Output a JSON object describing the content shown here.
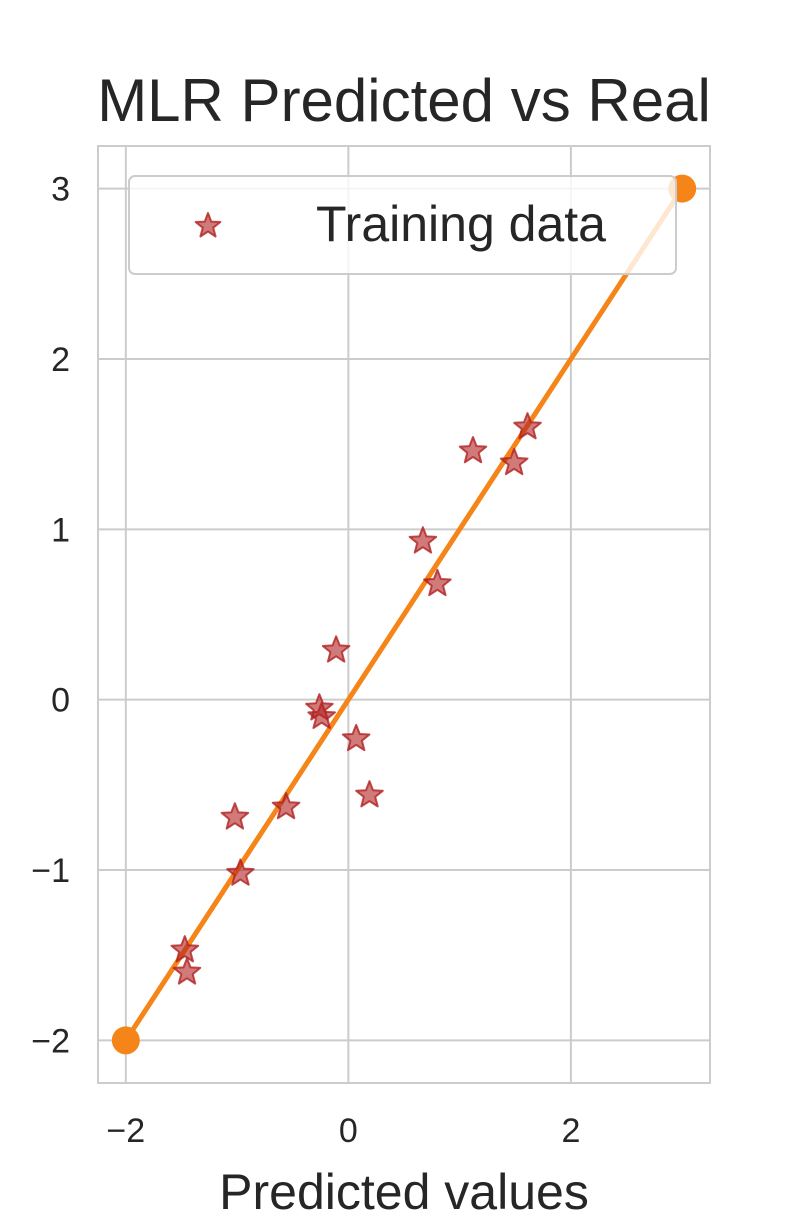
{
  "chart_data": {
    "type": "scatter",
    "title": "MLR Predicted vs Real",
    "xlabel": "Predicted values",
    "ylabel": "",
    "xlim": [
      -2.25,
      3.25
    ],
    "ylim": [
      -2.25,
      3.25
    ],
    "xticks": [
      -2,
      0,
      2
    ],
    "yticks": [
      -2,
      -1,
      0,
      1,
      2,
      3
    ],
    "xtick_labels": [
      "−2",
      "0",
      "2"
    ],
    "ytick_labels": [
      "−2",
      "−1",
      "0",
      "1",
      "2",
      "3"
    ],
    "grid": true,
    "legend": {
      "placement": "top",
      "entries": [
        "Training data"
      ]
    },
    "series": [
      {
        "name": "Training data",
        "marker": "star",
        "color": "#b22222",
        "points": [
          [
            -1.47,
            -1.47
          ],
          [
            -1.45,
            -1.6
          ],
          [
            -1.02,
            -0.69
          ],
          [
            -0.97,
            -1.02
          ],
          [
            -0.56,
            -0.63
          ],
          [
            -0.26,
            -0.05
          ],
          [
            -0.24,
            -0.1
          ],
          [
            -0.11,
            0.29
          ],
          [
            0.07,
            -0.23
          ],
          [
            0.19,
            -0.56
          ],
          [
            0.67,
            0.93
          ],
          [
            0.8,
            0.68
          ],
          [
            1.12,
            1.46
          ],
          [
            1.49,
            1.39
          ],
          [
            1.61,
            1.6
          ]
        ]
      },
      {
        "marker": "line",
        "color": "#f58518",
        "points": [
          [
            -2,
            -2
          ],
          [
            3,
            3
          ]
        ]
      }
    ]
  }
}
